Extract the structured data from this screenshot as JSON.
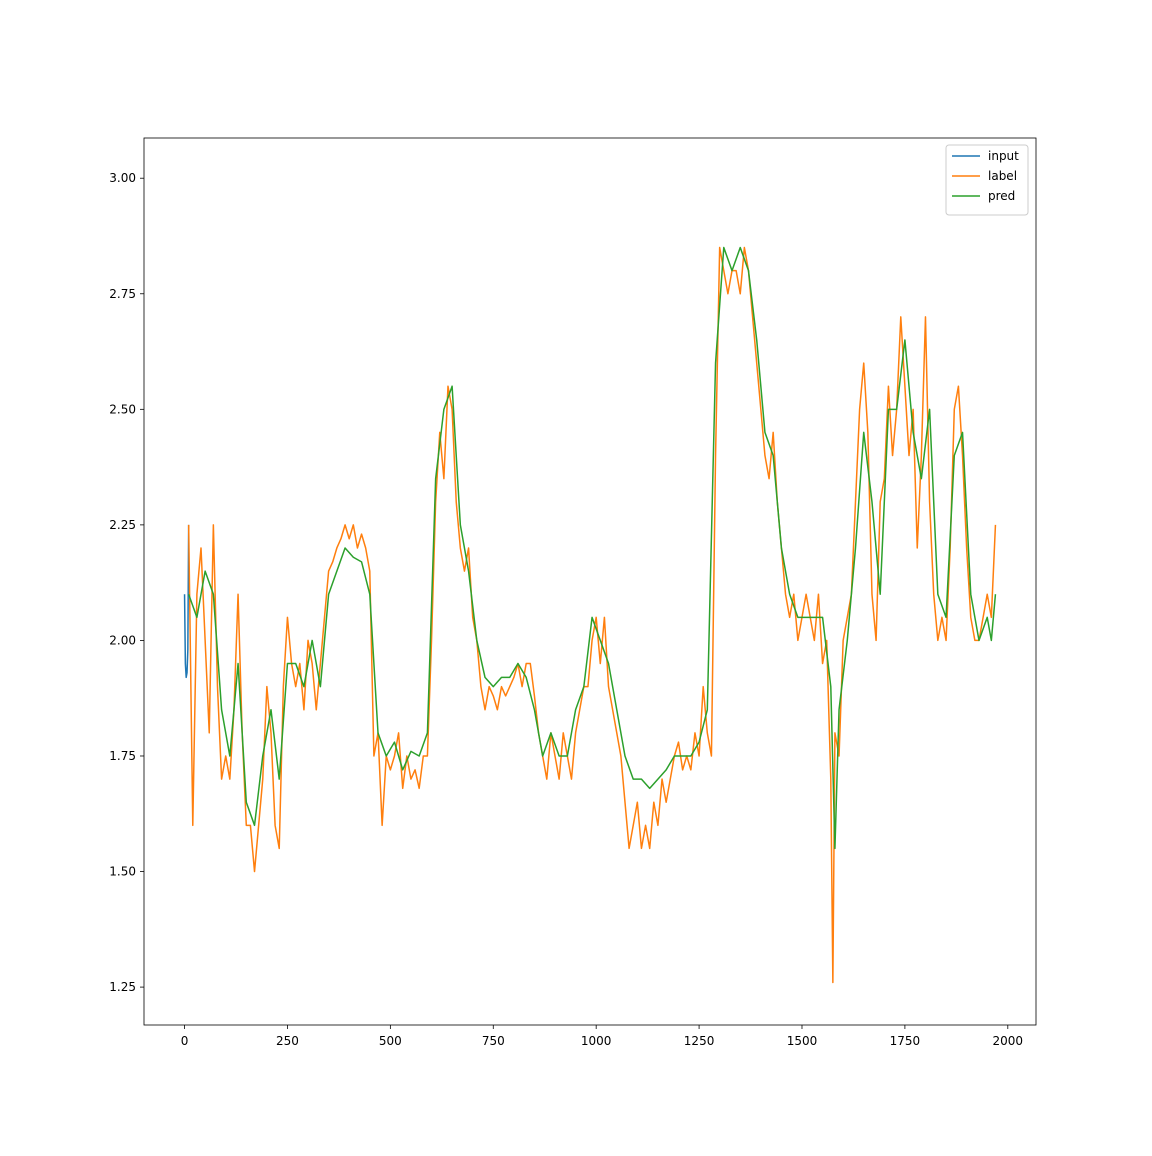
{
  "chart_data": {
    "type": "line",
    "xlim": [
      -98.5,
      2068.5
    ],
    "ylim": [
      1.168,
      3.087
    ],
    "xticks": [
      0,
      250,
      500,
      750,
      1000,
      1250,
      1500,
      1750,
      2000
    ],
    "yticks": [
      1.25,
      {
        "value": 1.5,
        "label": "1.50"
      },
      1.75,
      {
        "value": 2,
        "label": "2.00"
      },
      2.25,
      {
        "value": 2.5,
        "label": "2.50"
      },
      2.75,
      {
        "value": 3,
        "label": "3.00"
      }
    ],
    "legend": "upper right",
    "grid": false,
    "series": [
      {
        "name": "input",
        "color": "#1f77b4",
        "x": [
          0,
          2,
          4,
          6,
          8,
          10
        ],
        "values": [
          2.1,
          1.95,
          1.92,
          1.93,
          1.98,
          2.25
        ]
      },
      {
        "name": "label",
        "color": "#ff7f0e",
        "x": [
          10,
          20,
          30,
          40,
          50,
          60,
          70,
          80,
          90,
          100,
          110,
          120,
          130,
          140,
          150,
          160,
          170,
          180,
          190,
          200,
          210,
          220,
          230,
          240,
          250,
          260,
          270,
          280,
          290,
          300,
          310,
          320,
          330,
          340,
          350,
          360,
          370,
          380,
          390,
          400,
          410,
          420,
          430,
          440,
          450,
          460,
          470,
          480,
          490,
          500,
          510,
          520,
          530,
          540,
          550,
          560,
          570,
          580,
          590,
          600,
          610,
          620,
          630,
          640,
          650,
          660,
          670,
          680,
          690,
          700,
          710,
          720,
          730,
          740,
          750,
          760,
          770,
          780,
          790,
          800,
          810,
          820,
          830,
          840,
          850,
          860,
          870,
          880,
          890,
          900,
          910,
          920,
          930,
          940,
          950,
          960,
          970,
          980,
          990,
          1000,
          1010,
          1020,
          1030,
          1040,
          1050,
          1060,
          1070,
          1080,
          1090,
          1100,
          1110,
          1120,
          1130,
          1140,
          1150,
          1160,
          1170,
          1180,
          1190,
          1200,
          1210,
          1220,
          1230,
          1240,
          1250,
          1260,
          1270,
          1280,
          1290,
          1300,
          1310,
          1320,
          1330,
          1340,
          1350,
          1360,
          1370,
          1380,
          1390,
          1400,
          1410,
          1420,
          1430,
          1440,
          1450,
          1460,
          1470,
          1480,
          1490,
          1500,
          1510,
          1520,
          1530,
          1540,
          1550,
          1560,
          1570,
          1575,
          1580,
          1590,
          1600,
          1610,
          1620,
          1630,
          1640,
          1650,
          1660,
          1670,
          1680,
          1690,
          1700,
          1710,
          1720,
          1730,
          1740,
          1750,
          1760,
          1770,
          1780,
          1790,
          1800,
          1810,
          1820,
          1830,
          1840,
          1850,
          1860,
          1870,
          1880,
          1890,
          1900,
          1910,
          1920,
          1930,
          1940,
          1950,
          1960,
          1970
        ],
        "values": [
          2.25,
          1.6,
          2.1,
          2.2,
          2.0,
          1.8,
          2.25,
          1.9,
          1.7,
          1.75,
          1.7,
          1.85,
          2.1,
          1.8,
          1.6,
          1.6,
          1.5,
          1.6,
          1.7,
          1.9,
          1.8,
          1.6,
          1.55,
          1.9,
          2.05,
          1.95,
          1.9,
          1.95,
          1.85,
          2.0,
          1.95,
          1.85,
          1.95,
          2.05,
          2.15,
          2.17,
          2.2,
          2.22,
          2.25,
          2.22,
          2.25,
          2.2,
          2.23,
          2.2,
          2.15,
          1.75,
          1.8,
          1.6,
          1.75,
          1.72,
          1.75,
          1.8,
          1.68,
          1.75,
          1.7,
          1.72,
          1.68,
          1.75,
          1.75,
          2.0,
          2.3,
          2.45,
          2.35,
          2.55,
          2.5,
          2.3,
          2.2,
          2.15,
          2.2,
          2.05,
          2.0,
          1.9,
          1.85,
          1.9,
          1.88,
          1.85,
          1.9,
          1.88,
          1.9,
          1.92,
          1.95,
          1.9,
          1.95,
          1.95,
          1.88,
          1.8,
          1.75,
          1.7,
          1.8,
          1.75,
          1.7,
          1.8,
          1.75,
          1.7,
          1.8,
          1.85,
          1.9,
          1.9,
          2.0,
          2.05,
          1.95,
          2.05,
          1.9,
          1.85,
          1.8,
          1.75,
          1.65,
          1.55,
          1.6,
          1.65,
          1.55,
          1.6,
          1.55,
          1.65,
          1.6,
          1.7,
          1.65,
          1.7,
          1.75,
          1.78,
          1.72,
          1.75,
          1.72,
          1.8,
          1.75,
          1.9,
          1.8,
          1.75,
          2.4,
          2.85,
          2.8,
          2.75,
          2.8,
          2.8,
          2.75,
          2.85,
          2.8,
          2.7,
          2.6,
          2.5,
          2.4,
          2.35,
          2.45,
          2.3,
          2.2,
          2.1,
          2.05,
          2.1,
          2.0,
          2.05,
          2.1,
          2.05,
          2.0,
          2.1,
          1.95,
          2.0,
          1.7,
          1.26,
          1.8,
          1.75,
          2.0,
          2.05,
          2.1,
          2.3,
          2.5,
          2.6,
          2.45,
          2.1,
          2.0,
          2.3,
          2.35,
          2.55,
          2.4,
          2.5,
          2.7,
          2.55,
          2.4,
          2.5,
          2.2,
          2.4,
          2.7,
          2.3,
          2.1,
          2.0,
          2.05,
          2.0,
          2.2,
          2.5,
          2.55,
          2.4,
          2.2,
          2.05,
          2.0,
          2.0,
          2.05,
          2.1,
          2.05,
          2.25
        ]
      },
      {
        "name": "pred",
        "color": "#2ca02c",
        "x": [
          10,
          30,
          50,
          70,
          90,
          110,
          130,
          150,
          170,
          190,
          210,
          230,
          250,
          270,
          290,
          310,
          330,
          350,
          370,
          390,
          410,
          430,
          450,
          470,
          490,
          510,
          530,
          550,
          570,
          590,
          610,
          630,
          650,
          670,
          690,
          710,
          730,
          750,
          770,
          790,
          810,
          830,
          850,
          870,
          890,
          910,
          930,
          950,
          970,
          990,
          1010,
          1030,
          1050,
          1070,
          1090,
          1110,
          1130,
          1150,
          1170,
          1190,
          1210,
          1230,
          1250,
          1270,
          1290,
          1310,
          1330,
          1350,
          1370,
          1390,
          1410,
          1430,
          1450,
          1470,
          1490,
          1510,
          1530,
          1550,
          1570,
          1580,
          1590,
          1610,
          1630,
          1650,
          1670,
          1690,
          1710,
          1730,
          1750,
          1770,
          1790,
          1810,
          1830,
          1850,
          1870,
          1890,
          1910,
          1930,
          1950,
          1960,
          1970
        ],
        "values": [
          2.1,
          2.05,
          2.15,
          2.1,
          1.85,
          1.75,
          1.95,
          1.65,
          1.6,
          1.75,
          1.85,
          1.7,
          1.95,
          1.95,
          1.9,
          2.0,
          1.9,
          2.1,
          2.15,
          2.2,
          2.18,
          2.17,
          2.1,
          1.8,
          1.75,
          1.78,
          1.72,
          1.76,
          1.75,
          1.8,
          2.35,
          2.5,
          2.55,
          2.25,
          2.15,
          2.0,
          1.92,
          1.9,
          1.92,
          1.92,
          1.95,
          1.92,
          1.85,
          1.75,
          1.8,
          1.75,
          1.75,
          1.85,
          1.9,
          2.05,
          2.0,
          1.95,
          1.85,
          1.75,
          1.7,
          1.7,
          1.68,
          1.7,
          1.72,
          1.75,
          1.75,
          1.75,
          1.78,
          1.85,
          2.6,
          2.85,
          2.8,
          2.85,
          2.8,
          2.65,
          2.45,
          2.4,
          2.2,
          2.1,
          2.05,
          2.05,
          2.05,
          2.05,
          1.9,
          1.55,
          1.85,
          2.0,
          2.2,
          2.45,
          2.3,
          2.1,
          2.5,
          2.5,
          2.65,
          2.45,
          2.35,
          2.5,
          2.1,
          2.05,
          2.4,
          2.45,
          2.1,
          2.0,
          2.05,
          2.0,
          2.1
        ]
      }
    ]
  }
}
